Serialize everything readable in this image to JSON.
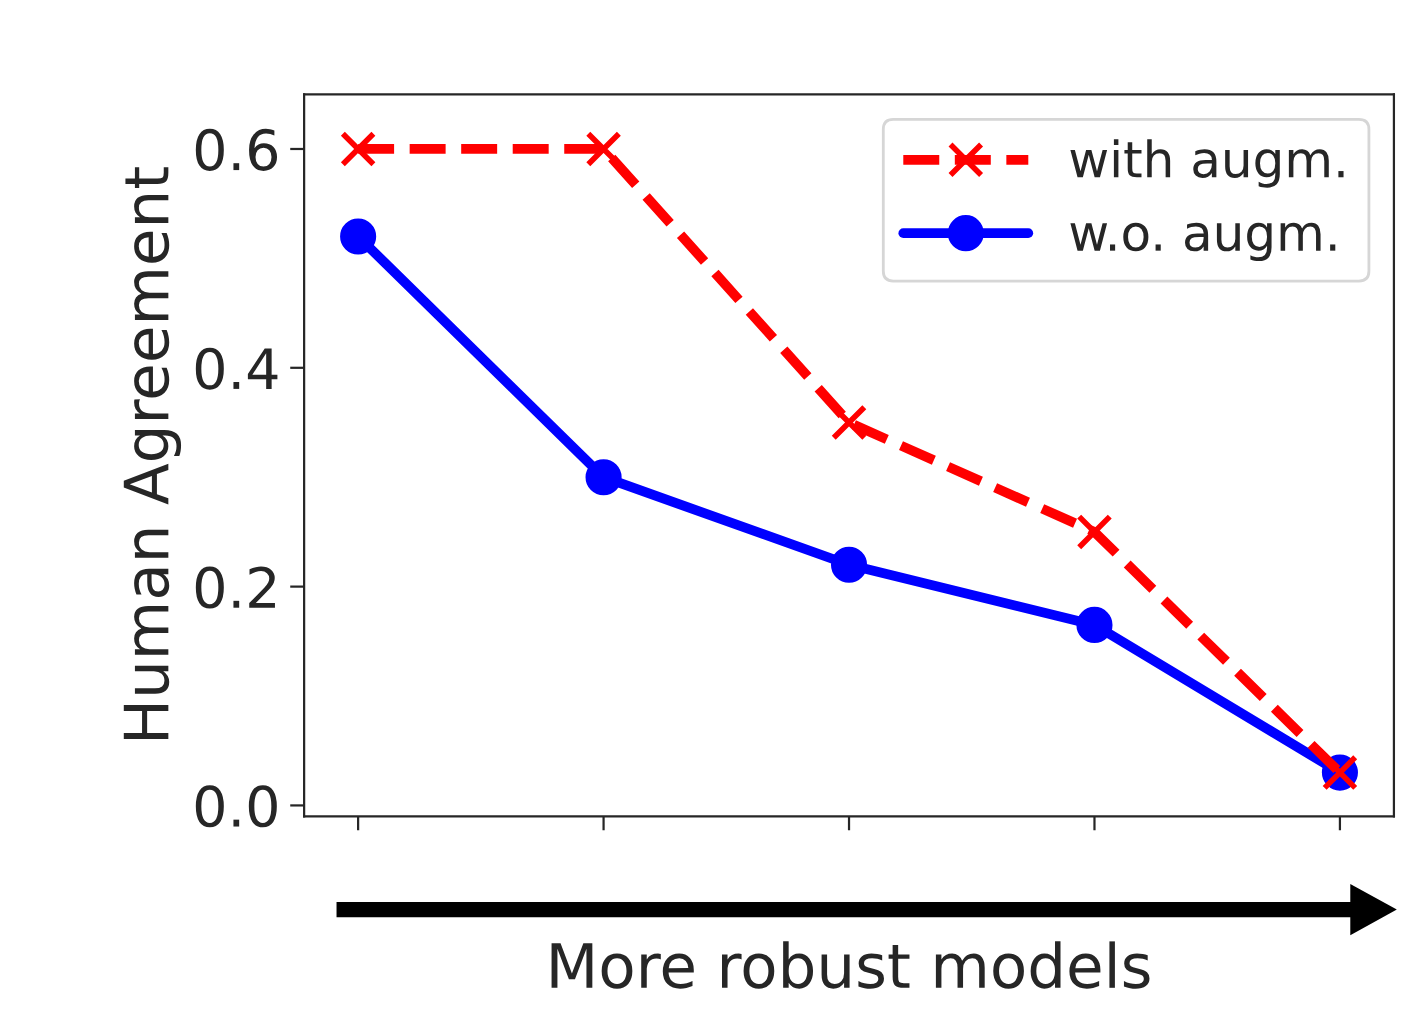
{
  "chart_data": {
    "type": "line",
    "ylabel": "Human Agreement",
    "xlabel": "More robust models",
    "categories": [
      null,
      null,
      null,
      null,
      null
    ],
    "series": [
      {
        "name": "with augm.",
        "color": "#ff0000",
        "values": [
          0.6,
          0.6,
          0.35,
          0.25,
          0.03
        ],
        "marker": "cross",
        "line_style": "dashed"
      },
      {
        "name": "w.o. augm.",
        "color": "#0000ff",
        "values": [
          0.52,
          0.3,
          0.22,
          0.165,
          0.03
        ],
        "marker": "circle",
        "line_style": "solid"
      }
    ],
    "ylim": [
      -0.01,
      0.65
    ],
    "yticks": [
      {
        "value": 0,
        "label": "0.0"
      },
      0.2,
      0.4,
      0.6
    ],
    "tick_labels": "y",
    "legend": "top right",
    "grid": false
  }
}
